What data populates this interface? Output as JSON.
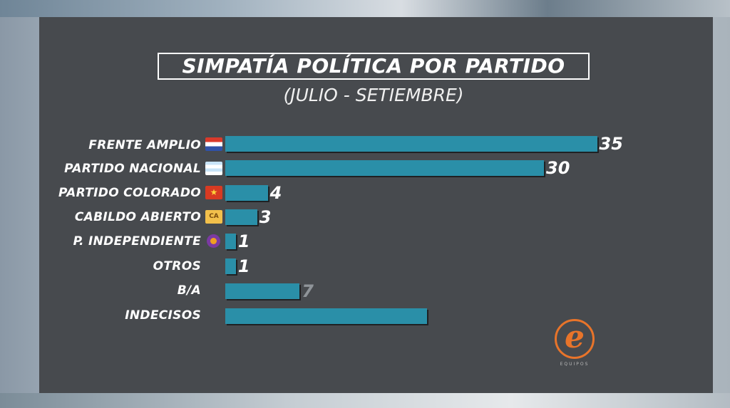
{
  "chart_data": {
    "type": "bar",
    "orientation": "horizontal",
    "title": "SIMPATÍA POLÍTICA POR PARTIDO",
    "subtitle": "(JULIO - SETIEMBRE)",
    "categories": [
      "FRENTE AMPLIO",
      "PARTIDO NACIONAL",
      "PARTIDO COLORADO",
      "CABILDO ABIERTO",
      "P. INDEPENDIENTE",
      "OTROS",
      "B/A",
      "INDECISOS"
    ],
    "values": [
      35,
      30,
      4,
      3,
      1,
      1,
      7,
      19
    ],
    "value_labels": [
      "35",
      "30",
      "4",
      "3",
      "1",
      "1",
      "7",
      ""
    ],
    "icons": [
      "frente-amplio-flag-icon",
      "partido-nacional-flag-icon",
      "partido-colorado-flag-icon",
      "cabildo-abierto-logo-icon",
      "partido-independiente-logo-icon",
      "",
      "",
      ""
    ],
    "xlim": [
      0,
      36
    ],
    "grid": false,
    "legend": "none",
    "bar_color": "#2a8fa8",
    "label_color": "#ffffff",
    "dim_label_color": "#8f9499"
  },
  "logo": {
    "letter": "e",
    "caption": "EQUIPOS",
    "color": "#e8742a"
  },
  "panel_color": "#474a4e"
}
